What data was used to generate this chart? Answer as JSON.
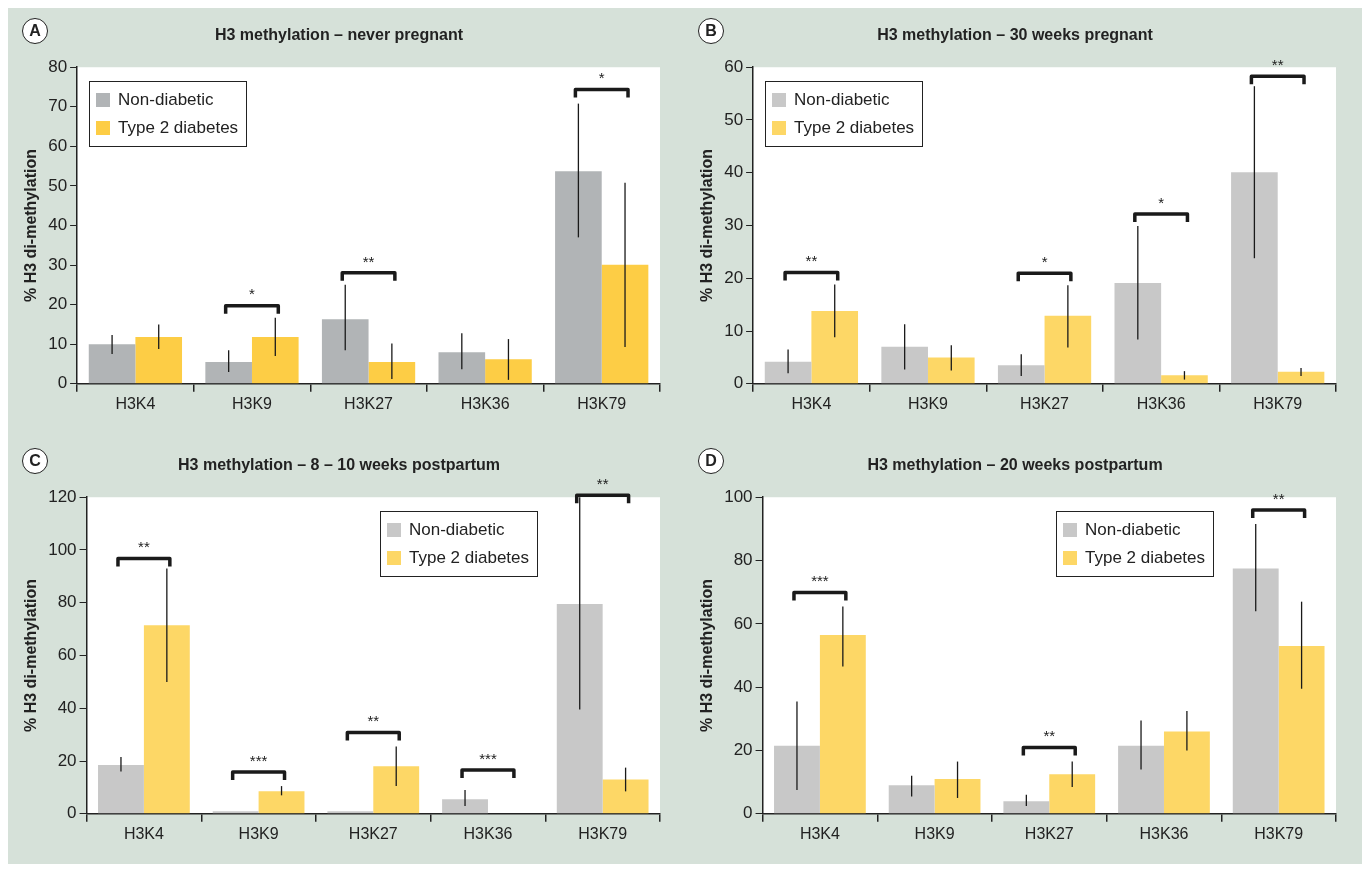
{
  "chart_data": [
    {
      "type": "bar",
      "title": "H3 methylation – never pregnant",
      "ylabel": "% H3 di-methylation",
      "categories": [
        "H3K4",
        "H3K9",
        "H3K27",
        "H3K36",
        "H3K79"
      ],
      "ylim": [
        0,
        80
      ],
      "yticks": [
        0,
        10,
        20,
        30,
        40,
        50,
        60,
        70,
        80
      ],
      "grid": false,
      "legend": "top left",
      "series": [
        {
          "name": "Non-diabetic",
          "color": "#b1b4b6",
          "values": [
            10,
            5.5,
            16.3,
            8,
            53.7
          ],
          "errors": [
            [
              7.5,
              12.3
            ],
            [
              3,
              8.5
            ],
            [
              8.5,
              25
            ],
            [
              3.7,
              12.8
            ],
            [
              37,
              70.8
            ]
          ]
        },
        {
          "name": "Type 2 diabetes",
          "color": "#fdcd45",
          "values": [
            11.8,
            11.8,
            5.5,
            6.2,
            30.1
          ],
          "errors": [
            [
              8.8,
              15
            ],
            [
              7,
              16.7
            ],
            [
              1.2,
              10.2
            ],
            [
              1,
              11.3
            ],
            [
              9.3,
              50.8
            ]
          ]
        }
      ],
      "annotations": [
        "A",
        "*",
        "**",
        "*"
      ]
    },
    {
      "type": "bar",
      "title": "H3 methylation – 30 weeks pregnant",
      "ylabel": "% H3 di-methylation",
      "categories": [
        "H3K4",
        "H3K9",
        "H3K27",
        "H3K36",
        "H3K79"
      ],
      "ylim": [
        0,
        60
      ],
      "yticks": [
        0,
        10,
        20,
        30,
        40,
        50,
        60
      ],
      "grid": false,
      "legend": "top left",
      "series": [
        {
          "name": "Non-diabetic",
          "color": "#c8c8c8",
          "values": [
            4.2,
            7,
            3.5,
            19.1,
            40.1
          ],
          "errors": [
            [
              2,
              6.5
            ],
            [
              2.7,
              11.3
            ],
            [
              1.5,
              5.6
            ],
            [
              8.4,
              29.9
            ],
            [
              23.8,
              56.4
            ]
          ]
        },
        {
          "name": "Type 2 diabetes",
          "color": "#fdd766",
          "values": [
            13.8,
            5,
            12.9,
            1.6,
            2.3
          ],
          "errors": [
            [
              8.8,
              18.8
            ],
            [
              2.5,
              7.3
            ],
            [
              6.9,
              18.7
            ],
            [
              0.8,
              2.4
            ],
            [
              1.5,
              3
            ]
          ]
        }
      ],
      "annotations": [
        "B",
        "**",
        "*",
        "*",
        "**"
      ]
    },
    {
      "type": "bar",
      "title": "H3 methylation – 8 – 10 weeks postpartum",
      "ylabel": "% H3 di-methylation",
      "categories": [
        "H3K4",
        "H3K9",
        "H3K27",
        "H3K36",
        "H3K79"
      ],
      "ylim": [
        0,
        120
      ],
      "yticks": [
        0,
        20,
        40,
        60,
        80,
        100,
        120
      ],
      "grid": false,
      "legend": "top right",
      "series": [
        {
          "name": "Non-diabetic",
          "color": "#c8c8c8",
          "values": [
            18.5,
            1,
            1,
            5.5,
            79.5
          ],
          "errors": [
            [
              16,
              21.5
            ],
            null,
            null,
            [
              3,
              9
            ],
            [
              39.5,
              120
            ]
          ]
        },
        {
          "name": "Type 2 diabetes",
          "color": "#fdd766",
          "values": [
            71.5,
            8.5,
            18,
            null,
            13
          ],
          "errors": [
            [
              50,
              93
            ],
            [
              7,
              10.5
            ],
            [
              10.5,
              25.5
            ],
            null,
            [
              8.5,
              17.5
            ]
          ]
        }
      ],
      "annotations": [
        "C",
        "**",
        "***",
        "**",
        "***",
        "**"
      ]
    },
    {
      "type": "bar",
      "title": "H3 methylation – 20 weeks postpartum",
      "ylabel": "% H3 di-methylation",
      "categories": [
        "H3K4",
        "H3K9",
        "H3K27",
        "H3K36",
        "H3K79"
      ],
      "ylim": [
        0,
        100
      ],
      "yticks": [
        0,
        20,
        40,
        60,
        80,
        100
      ],
      "grid": false,
      "legend": "top right",
      "series": [
        {
          "name": "Non-diabetic",
          "color": "#c8c8c8",
          "values": [
            21.5,
            9,
            4,
            21.5,
            77.5
          ],
          "errors": [
            [
              7.5,
              35.5
            ],
            [
              5.5,
              12
            ],
            [
              2.5,
              6
            ],
            [
              14,
              29.5
            ],
            [
              64,
              91.5
            ]
          ]
        },
        {
          "name": "Type 2 diabetes",
          "color": "#fdd766",
          "values": [
            56.5,
            11,
            12.5,
            26,
            53
          ],
          "errors": [
            [
              46.5,
              65.5
            ],
            [
              5,
              16.5
            ],
            [
              8.5,
              16.5
            ],
            [
              20,
              32.5
            ],
            [
              39.5,
              67
            ]
          ]
        }
      ],
      "annotations": [
        "D",
        "***",
        "**",
        "**"
      ]
    }
  ]
}
